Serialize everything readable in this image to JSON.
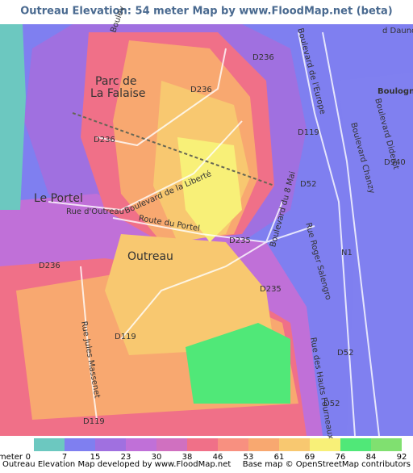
{
  "header": {
    "title": "Outreau Elevation: 54 meter Map by www.FloodMap.net (beta)"
  },
  "map": {
    "labels": [
      "Boulev",
      "D236",
      "Boulevard de l'Europe",
      "d Daunou",
      "Parc de",
      "La Falaise",
      "D236",
      "Boulogne-V",
      "Boulevard Diderot",
      "D119",
      "D236",
      "Boulevard Chanzy",
      "D940",
      "Le Portel",
      "Boulevard de la Liberté",
      "D52",
      "Boulevard du 8 Mai",
      "Rue d'Outreau",
      "Route du Portel",
      "D235",
      "Rue Roger Salengro",
      "N1",
      "Outreau",
      "D236",
      "D235",
      "Rue Jules Massenet",
      "D119",
      "Rue des Hauts Fourneaux",
      "D52",
      "D52",
      "D119"
    ]
  },
  "legend": {
    "unit": "meter",
    "ticks": [
      0,
      7,
      15,
      23,
      30,
      38,
      46,
      53,
      61,
      69,
      76,
      84,
      92
    ],
    "colors": [
      "#6cc8c0",
      "#7f7ff0",
      "#a070e0",
      "#c070d8",
      "#d070c0",
      "#f07088",
      "#f89080",
      "#f8a870",
      "#f8c870",
      "#f8f078",
      "#50e878",
      "#80e070"
    ]
  },
  "footer": {
    "left": "Outreau Elevation Map developed by www.FloodMap.net",
    "right": "Base map © OpenStreetMap contributors"
  }
}
